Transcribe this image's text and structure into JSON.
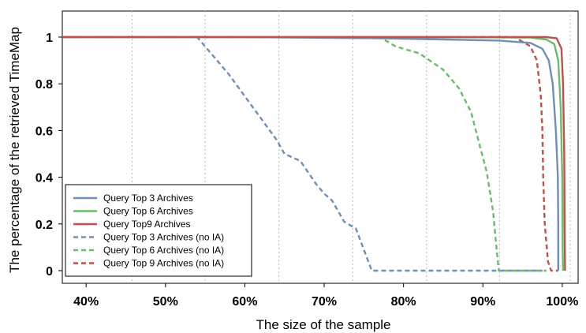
{
  "chart_data": {
    "type": "line",
    "title": "",
    "xlabel": "The size of the sample",
    "ylabel": "The percentage of the retrieved TimeMap",
    "xlim": [
      37,
      102
    ],
    "ylim": [
      0,
      1
    ],
    "x_tick_values": [
      40,
      50,
      60,
      70,
      80,
      90,
      100
    ],
    "x_tick_labels": [
      "40%",
      "50%",
      "60%",
      "70%",
      "80%",
      "90%",
      "100%"
    ],
    "y_tick_values": [
      0,
      0.2,
      0.4,
      0.6,
      0.8,
      1
    ],
    "y_tick_labels": [
      "0",
      "0.2",
      "0.4",
      "0.6",
      "0.8",
      "1"
    ],
    "grid": "vertical dotted",
    "legend_position": "bottom-left",
    "series": [
      {
        "name": "Query Top 3 Archives",
        "color": "#6f8fb9",
        "style": "solid",
        "points": [
          [
            37,
            1
          ],
          [
            60,
            1
          ],
          [
            77,
            0.995
          ],
          [
            85,
            0.99
          ],
          [
            92,
            0.985
          ],
          [
            96,
            0.975
          ],
          [
            97.5,
            0.95
          ],
          [
            98.3,
            0.9
          ],
          [
            98.8,
            0.8
          ],
          [
            99.2,
            0.6
          ],
          [
            99.45,
            0.4
          ],
          [
            99.5,
            0.2
          ],
          [
            99.5,
            0
          ]
        ]
      },
      {
        "name": "Query Top 6 Archives",
        "color": "#6cba6c",
        "style": "solid",
        "points": [
          [
            37,
            1
          ],
          [
            85,
            1
          ],
          [
            96,
            0.998
          ],
          [
            98,
            0.99
          ],
          [
            99,
            0.97
          ],
          [
            99.5,
            0.9
          ],
          [
            99.8,
            0.7
          ],
          [
            100,
            0.4
          ],
          [
            100.05,
            0.1
          ],
          [
            100.1,
            0
          ]
        ]
      },
      {
        "name": "Query Top9 Archives",
        "color": "#c0504d",
        "style": "solid",
        "points": [
          [
            37,
            1
          ],
          [
            98,
            1
          ],
          [
            99.3,
            0.995
          ],
          [
            99.9,
            0.95
          ],
          [
            100.1,
            0.8
          ],
          [
            100.25,
            0.5
          ],
          [
            100.3,
            0.2
          ],
          [
            100.35,
            0
          ]
        ]
      },
      {
        "name": "Query Top 3 Archives (no IA)",
        "color": "#6f8fb9",
        "style": "dashed",
        "points": [
          [
            37,
            1
          ],
          [
            54,
            1
          ],
          [
            58,
            0.84
          ],
          [
            61,
            0.7
          ],
          [
            64,
            0.56
          ],
          [
            65,
            0.5
          ],
          [
            67,
            0.47
          ],
          [
            69,
            0.37
          ],
          [
            70,
            0.33
          ],
          [
            71,
            0.3
          ],
          [
            72.5,
            0.21
          ],
          [
            74,
            0.18
          ],
          [
            76,
            0
          ],
          [
            97.5,
            0
          ]
        ]
      },
      {
        "name": "Query Top 6 Archives (no IA)",
        "color": "#6cba6c",
        "style": "dashed",
        "points": [
          [
            37,
            1
          ],
          [
            77,
            1
          ],
          [
            79,
            0.96
          ],
          [
            82,
            0.93
          ],
          [
            85,
            0.86
          ],
          [
            87,
            0.78
          ],
          [
            88.5,
            0.68
          ],
          [
            89.5,
            0.55
          ],
          [
            90.5,
            0.42
          ],
          [
            91.3,
            0.25
          ],
          [
            91.7,
            0.1
          ],
          [
            92,
            0
          ],
          [
            98,
            0
          ]
        ]
      },
      {
        "name": "Query Top 9 Archives (no IA)",
        "color": "#c0504d",
        "style": "dashed",
        "points": [
          [
            37,
            1
          ],
          [
            94,
            1
          ],
          [
            96,
            0.96
          ],
          [
            96.8,
            0.9
          ],
          [
            97.3,
            0.75
          ],
          [
            97.5,
            0.6
          ],
          [
            97.6,
            0.4
          ],
          [
            97.8,
            0.2
          ],
          [
            98.2,
            0.04
          ],
          [
            98.6,
            0
          ],
          [
            99.5,
            0
          ]
        ]
      }
    ]
  }
}
